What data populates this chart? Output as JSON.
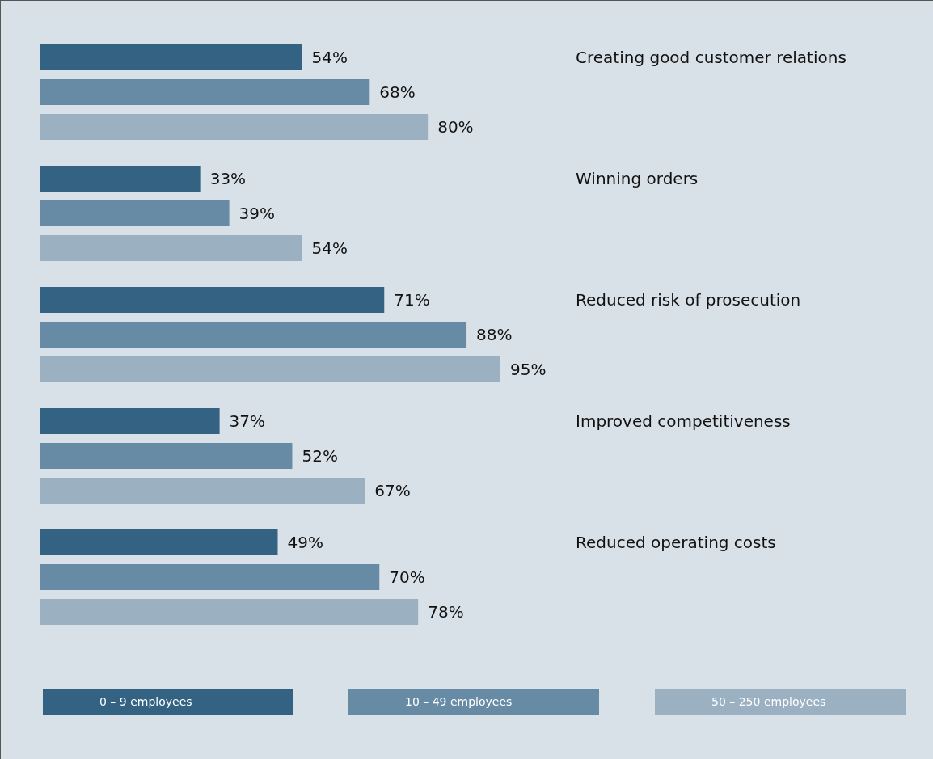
{
  "chart_data": {
    "type": "bar",
    "orientation": "horizontal",
    "categories": [
      "Creating good customer relations",
      "Winning orders",
      "Reduced risk of prosecution",
      "Improved competitiveness",
      "Reduced operating costs"
    ],
    "tick_labels": "y",
    "legend": "bottom",
    "series": [
      {
        "name": "0 – 9 employees",
        "color": "#336283",
        "values": [
          54,
          33,
          71,
          37,
          49
        ],
        "value_labels": [
          "54%",
          "33%",
          "71%",
          "37%",
          "49%"
        ]
      },
      {
        "name": "10 – 49 employees",
        "color": "#688ba5",
        "values": [
          68,
          39,
          88,
          52,
          70
        ],
        "value_labels": [
          "68%",
          "39%",
          "88%",
          "52%",
          "70%"
        ]
      },
      {
        "name": "50 – 250 employees",
        "color": "#9bb1c2",
        "values": [
          80,
          54,
          95,
          67,
          78
        ],
        "value_labels": [
          "80%",
          "54%",
          "95%",
          "67%",
          "78%"
        ]
      }
    ]
  }
}
